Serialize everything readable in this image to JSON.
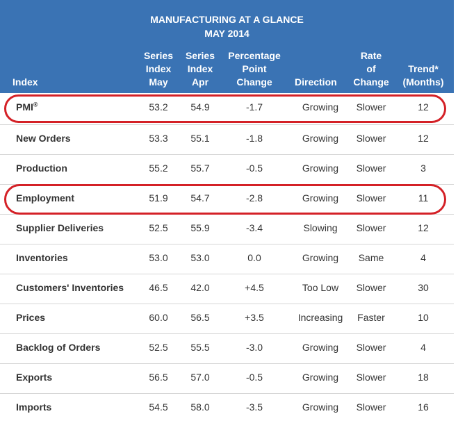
{
  "title": {
    "line1": "MANUFACTURING AT A GLANCE",
    "line2": "MAY 2014"
  },
  "columns": {
    "index": "Index",
    "series_may": [
      "Series",
      "Index",
      "May"
    ],
    "series_apr": [
      "Series",
      "Index",
      "Apr"
    ],
    "pct_change": [
      "Percentage",
      "Point",
      "Change"
    ],
    "direction": "Direction",
    "rate": [
      "Rate",
      "of",
      "Change"
    ],
    "trend": [
      "Trend*",
      "(Months)"
    ]
  },
  "rows": [
    {
      "name": "PMI",
      "sup": "®",
      "may": "53.2",
      "apr": "54.9",
      "change": "-1.7",
      "direction": "Growing",
      "rate": "Slower",
      "trend": "12"
    },
    {
      "name": "New Orders",
      "may": "53.3",
      "apr": "55.1",
      "change": "-1.8",
      "direction": "Growing",
      "rate": "Slower",
      "trend": "12"
    },
    {
      "name": "Production",
      "may": "55.2",
      "apr": "55.7",
      "change": "-0.5",
      "direction": "Growing",
      "rate": "Slower",
      "trend": "3"
    },
    {
      "name": "Employment",
      "may": "51.9",
      "apr": "54.7",
      "change": "-2.8",
      "direction": "Growing",
      "rate": "Slower",
      "trend": "11"
    },
    {
      "name": "Supplier Deliveries",
      "may": "52.5",
      "apr": "55.9",
      "change": "-3.4",
      "direction": "Slowing",
      "rate": "Slower",
      "trend": "12"
    },
    {
      "name": "Inventories",
      "may": "53.0",
      "apr": "53.0",
      "change": "0.0",
      "direction": "Growing",
      "rate": "Same",
      "trend": "4"
    },
    {
      "name": "Customers' Inventories",
      "may": "46.5",
      "apr": "42.0",
      "change": "+4.5",
      "direction": "Too Low",
      "rate": "Slower",
      "trend": "30"
    },
    {
      "name": "Prices",
      "may": "60.0",
      "apr": "56.5",
      "change": "+3.5",
      "direction": "Increasing",
      "rate": "Faster",
      "trend": "10"
    },
    {
      "name": "Backlog of Orders",
      "may": "52.5",
      "apr": "55.5",
      "change": "-3.0",
      "direction": "Growing",
      "rate": "Slower",
      "trend": "4"
    },
    {
      "name": "Exports",
      "may": "56.5",
      "apr": "57.0",
      "change": "-0.5",
      "direction": "Growing",
      "rate": "Slower",
      "trend": "18"
    },
    {
      "name": "Imports",
      "may": "54.5",
      "apr": "58.0",
      "change": "-3.5",
      "direction": "Growing",
      "rate": "Slower",
      "trend": "16"
    }
  ],
  "highlighted_rows": [
    "PMI",
    "Employment"
  ],
  "colors": {
    "header_bg": "#3a73b4",
    "header_text": "#ffffff",
    "highlight_circle": "#d42127",
    "row_separator": "#d6d6d6"
  }
}
